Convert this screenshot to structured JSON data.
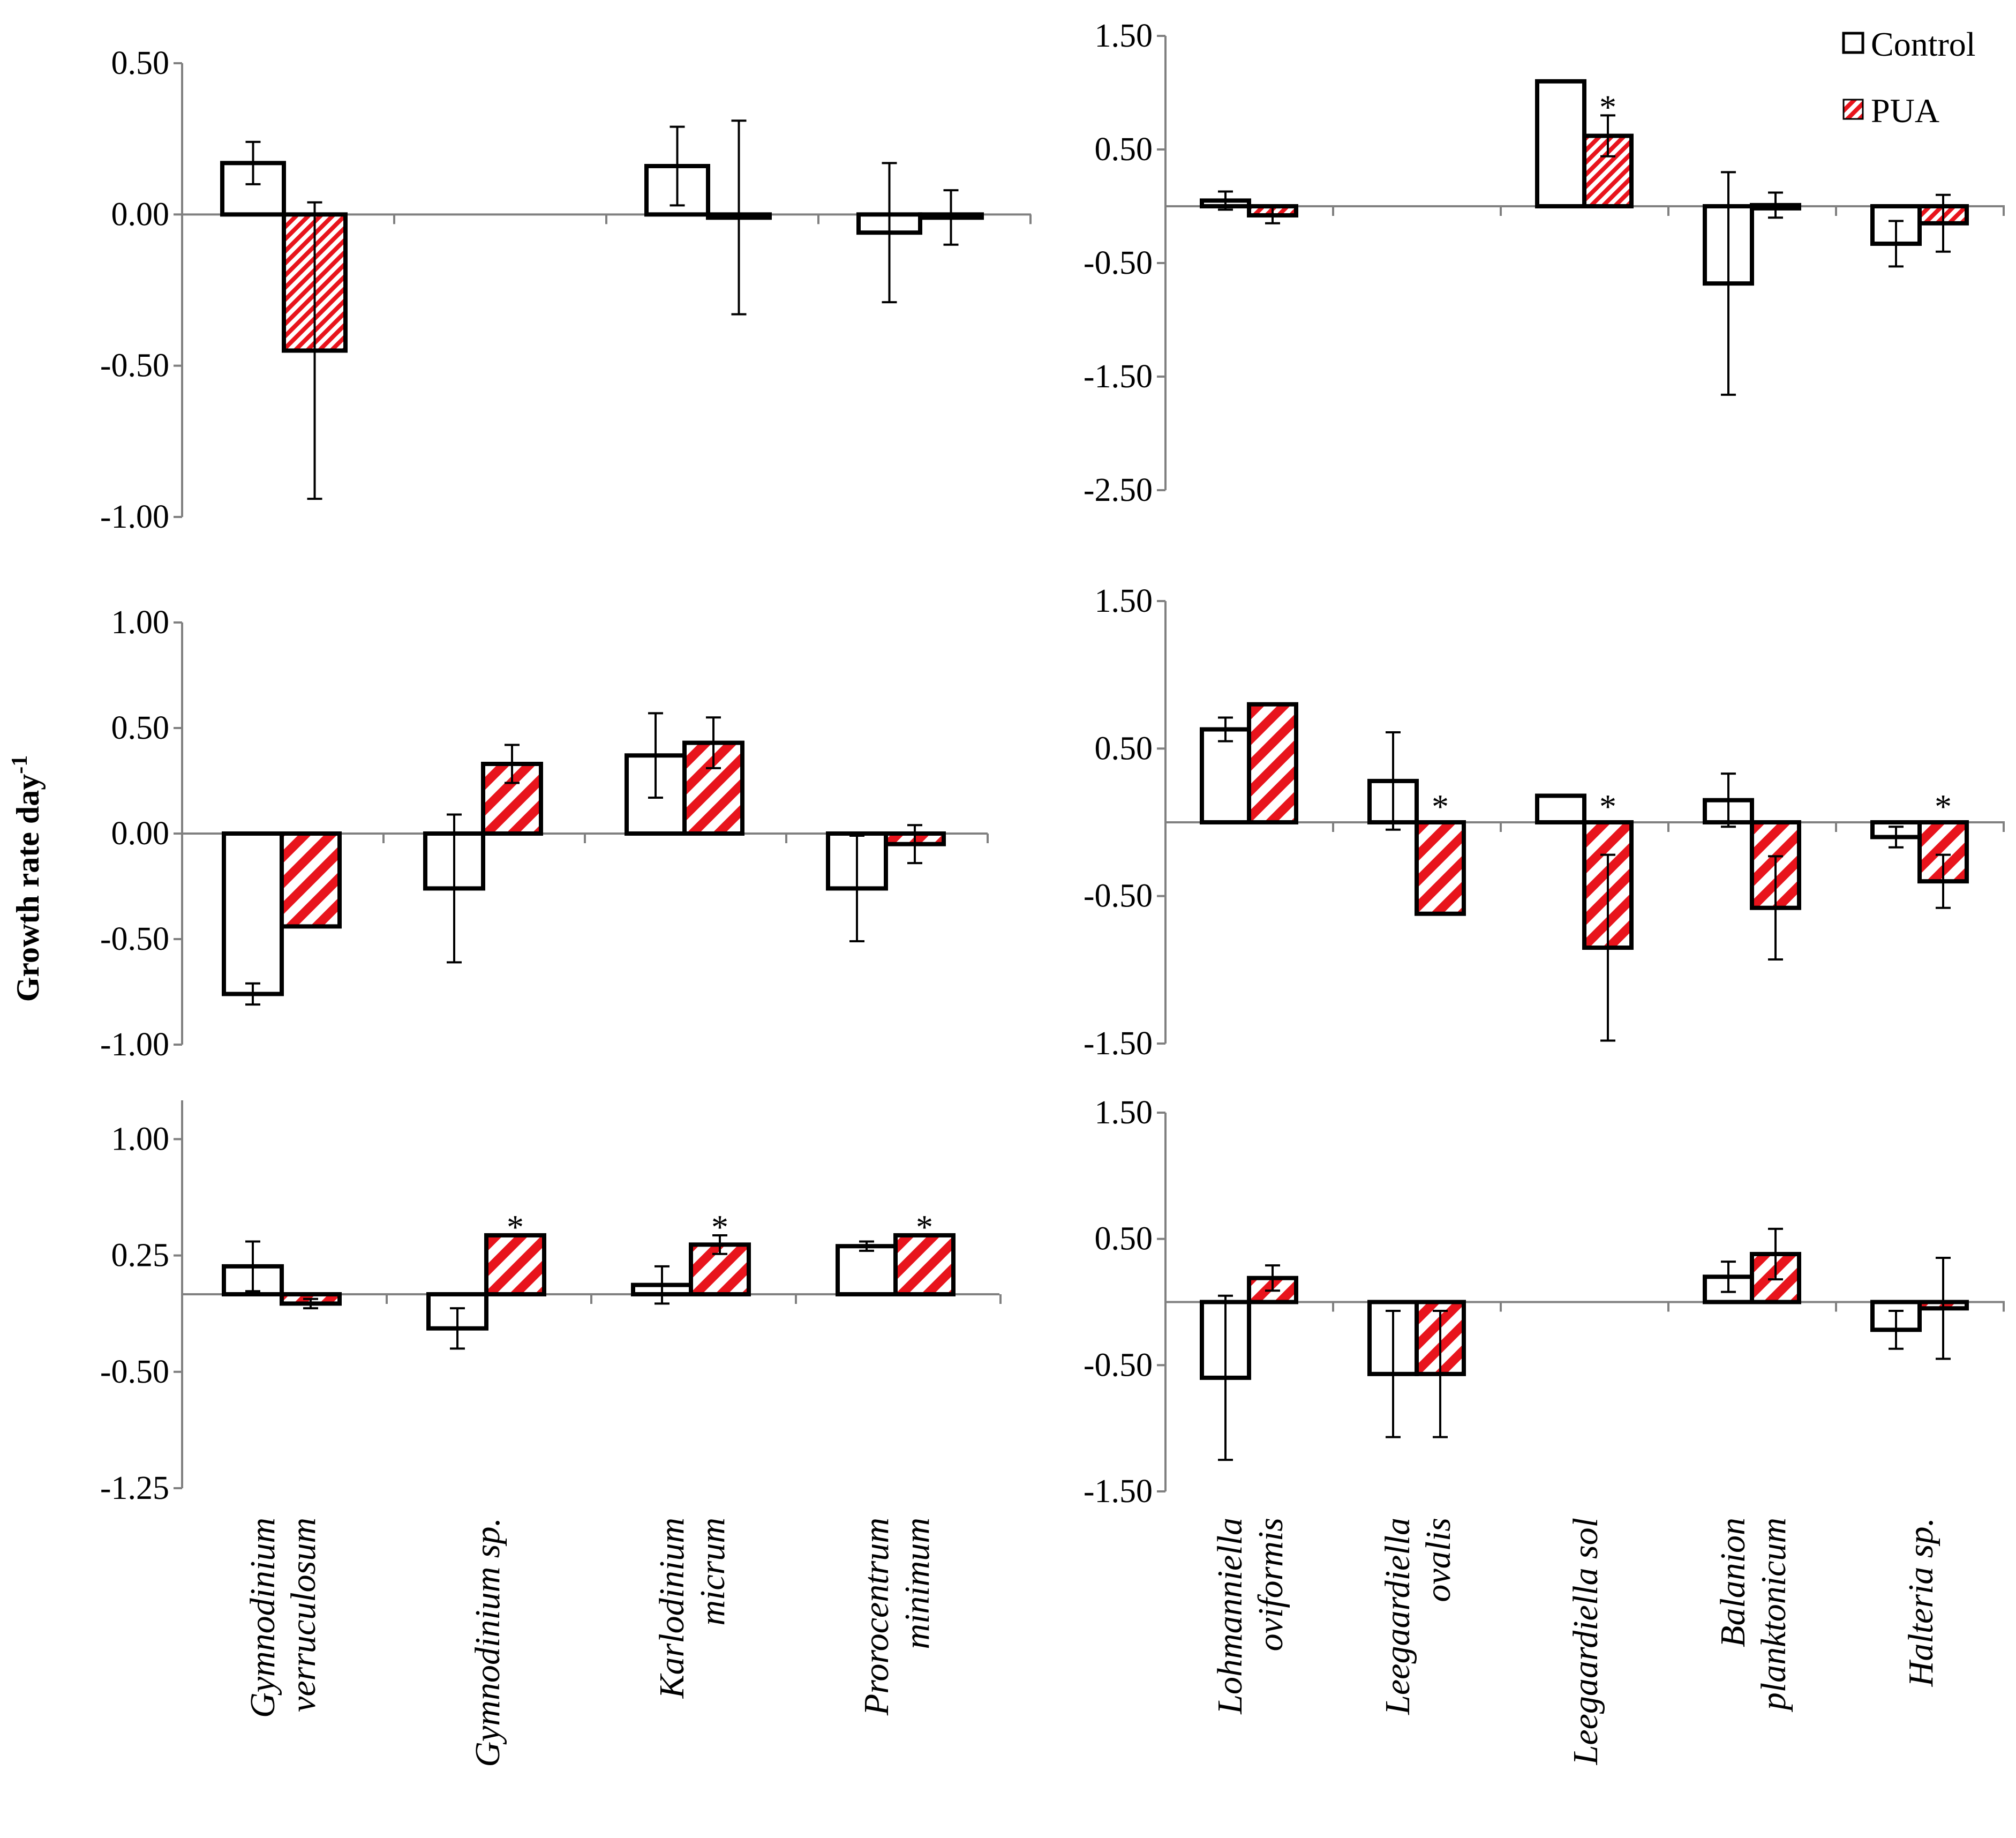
{
  "y_axis_label": "Growth  rate  day",
  "y_axis_label_sup": "-1",
  "legend": {
    "items": [
      {
        "label": "Control",
        "fill": "#ffffff"
      },
      {
        "label": "PUA",
        "fill": "hatch"
      }
    ]
  },
  "colors": {
    "hatch": "#e8141c",
    "stroke": "#000000",
    "axis": "#808080"
  },
  "left_categories": [
    [
      "Gymnodinium",
      "verruculosum"
    ],
    [
      "Gymnodinium sp."
    ],
    [
      "Karlodinium",
      "micrum"
    ],
    [
      "Prorocentrum",
      "minimum"
    ]
  ],
  "right_categories": [
    [
      "Lohmanniella",
      "oviformis"
    ],
    [
      "Leegaardiella",
      "ovalis"
    ],
    [
      "Leegaardiella sol"
    ],
    [
      "Balanion",
      "planktonicum"
    ],
    [
      "Halteria sp."
    ]
  ],
  "chart_data": [
    {
      "type": "bar",
      "panel": "row1-left",
      "categories": [
        "Gymnodinium verruculosum",
        "Gymnodinium sp.",
        "Karlodinium micrum",
        "Prorocentrum minimum"
      ],
      "ylim": [
        -1.0,
        0.5
      ],
      "yticks": [
        "0.50",
        "0.00",
        "-0.50",
        "-1.00"
      ],
      "series": [
        {
          "name": "Control",
          "values": [
            0.17,
            null,
            0.16,
            -0.06
          ],
          "errors": [
            0.07,
            null,
            0.13,
            0.23
          ]
        },
        {
          "name": "PUA",
          "values": [
            -0.45,
            null,
            -0.01,
            -0.01
          ],
          "errors": [
            0.49,
            null,
            0.32,
            0.09
          ]
        }
      ],
      "significant": [
        false,
        false,
        false,
        false
      ]
    },
    {
      "type": "bar",
      "panel": "row1-right",
      "categories": [
        "Lohmanniella oviformis",
        "Leegaardiella ovalis",
        "Leegaardiella sol",
        "Balanion planktonicum",
        "Halteria sp."
      ],
      "ylim": [
        -2.5,
        1.5
      ],
      "yticks": [
        "1.50",
        "0.50",
        "-0.50",
        "-1.50",
        "-2.50"
      ],
      "series": [
        {
          "name": "Control",
          "values": [
            0.05,
            null,
            1.1,
            -0.68,
            -0.33
          ],
          "errors": [
            0.08,
            null,
            null,
            0.98,
            0.2
          ]
        },
        {
          "name": "PUA",
          "values": [
            -0.08,
            null,
            0.62,
            0.01,
            -0.15
          ],
          "errors": [
            0.07,
            null,
            0.18,
            0.11,
            0.25
          ]
        }
      ],
      "significant": [
        false,
        false,
        true,
        false,
        false
      ]
    },
    {
      "type": "bar",
      "panel": "row2-left",
      "categories": [
        "Gymnodinium verruculosum",
        "Gymnodinium sp.",
        "Karlodinium micrum",
        "Prorocentrum minimum"
      ],
      "ylim": [
        -1.0,
        1.0
      ],
      "yticks": [
        "1.00",
        "0.50",
        "0.00",
        "-0.50",
        "-1.00"
      ],
      "series": [
        {
          "name": "Control",
          "values": [
            -0.76,
            -0.26,
            0.37,
            -0.26
          ],
          "errors": [
            0.05,
            0.35,
            0.2,
            0.25
          ]
        },
        {
          "name": "PUA",
          "values": [
            -0.44,
            0.33,
            0.43,
            -0.05
          ],
          "errors": [
            null,
            0.09,
            0.12,
            0.09
          ]
        }
      ],
      "significant": [
        false,
        false,
        false,
        false
      ]
    },
    {
      "type": "bar",
      "panel": "row2-right",
      "categories": [
        "Lohmanniella oviformis",
        "Leegaardiella ovalis",
        "Leegaardiella sol",
        "Balanion planktonicum",
        "Halteria sp."
      ],
      "ylim": [
        -1.5,
        1.5
      ],
      "yticks": [
        "1.50",
        "0.50",
        "-0.50",
        "-1.50"
      ],
      "series": [
        {
          "name": "Control",
          "values": [
            0.63,
            0.28,
            0.18,
            0.15,
            -0.1
          ],
          "errors": [
            0.08,
            0.33,
            null,
            0.18,
            0.07
          ]
        },
        {
          "name": "PUA",
          "values": [
            0.8,
            -0.62,
            -0.85,
            -0.58,
            -0.4
          ],
          "errors": [
            null,
            null,
            0.63,
            0.35,
            0.18
          ]
        }
      ],
      "significant": [
        false,
        true,
        true,
        false,
        true
      ]
    },
    {
      "type": "bar",
      "panel": "row3-left",
      "categories": [
        "Gymnodinium verruculosum",
        "Gymnodinium sp.",
        "Karlodinium micrum",
        "Prorocentrum minimum"
      ],
      "ylim": [
        -1.25,
        1.25
      ],
      "yticks": [
        "1.00",
        "0.25",
        "-0.50",
        "-1.25"
      ],
      "series": [
        {
          "name": "Control",
          "values": [
            0.18,
            -0.22,
            0.06,
            0.31
          ],
          "errors": [
            0.16,
            0.13,
            0.12,
            0.03
          ]
        },
        {
          "name": "PUA",
          "values": [
            -0.06,
            0.38,
            0.32,
            0.38
          ],
          "errors": [
            0.03,
            null,
            0.06,
            null
          ]
        }
      ],
      "significant": [
        false,
        true,
        true,
        true
      ]
    },
    {
      "type": "bar",
      "panel": "row3-right",
      "categories": [
        "Lohmanniella oviformis",
        "Leegaardiella ovalis",
        "Leegaardiella sol",
        "Balanion planktonicum",
        "Halteria sp."
      ],
      "ylim": [
        -1.5,
        1.5
      ],
      "yticks": [
        "1.50",
        "0.50",
        "-0.50",
        "-1.50"
      ],
      "series": [
        {
          "name": "Control",
          "values": [
            -0.6,
            -0.57,
            null,
            0.2,
            -0.22
          ],
          "errors": [
            0.65,
            0.5,
            null,
            0.12,
            0.15
          ]
        },
        {
          "name": "PUA",
          "values": [
            0.19,
            -0.57,
            null,
            0.38,
            -0.05
          ],
          "errors": [
            0.1,
            0.5,
            null,
            0.2,
            0.4
          ]
        }
      ],
      "significant": [
        false,
        false,
        false,
        false,
        false
      ]
    }
  ]
}
